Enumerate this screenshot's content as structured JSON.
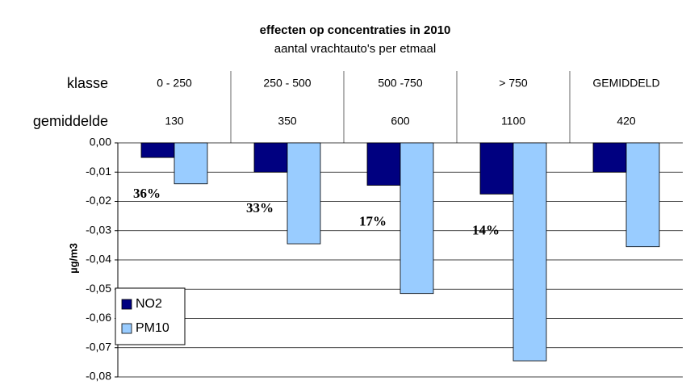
{
  "chart_data": {
    "type": "bar",
    "title": "effecten op concentraties in 2010",
    "subtitle": "aantal vrachtauto's per etmaal",
    "row_labels": [
      "klasse",
      "gemiddelde"
    ],
    "categories": [
      "0 - 250",
      "250 - 500",
      "500 -750",
      "> 750",
      "GEMIDDELD"
    ],
    "gemiddelde": [
      130,
      350,
      600,
      1100,
      420
    ],
    "ylabel": "µg/m3",
    "series": [
      {
        "name": "NO2",
        "color": "#000080",
        "values": [
          -0.005,
          -0.01,
          -0.0145,
          -0.0175,
          -0.01
        ]
      },
      {
        "name": "PM10",
        "color": "#99ccff",
        "values": [
          -0.014,
          -0.0345,
          -0.0515,
          -0.0745,
          -0.0355
        ]
      }
    ],
    "annotations": [
      "36%",
      "33%",
      "17%",
      "14%"
    ],
    "ylim": [
      -0.08,
      0
    ],
    "yticks": [
      {
        "value": 0,
        "label": "0,00"
      },
      {
        "value": -0.01,
        "label": "-0,01"
      },
      {
        "value": -0.02,
        "label": "-0,02"
      },
      {
        "value": -0.03,
        "label": "-0,03"
      },
      {
        "value": -0.04,
        "label": "-0,04"
      },
      {
        "value": -0.05,
        "label": "-0,05"
      },
      {
        "value": -0.06,
        "label": "-0,06"
      },
      {
        "value": -0.07,
        "label": "-0,07"
      },
      {
        "value": -0.08,
        "label": "-0,08"
      }
    ],
    "grid": true,
    "legend": "lower left"
  }
}
